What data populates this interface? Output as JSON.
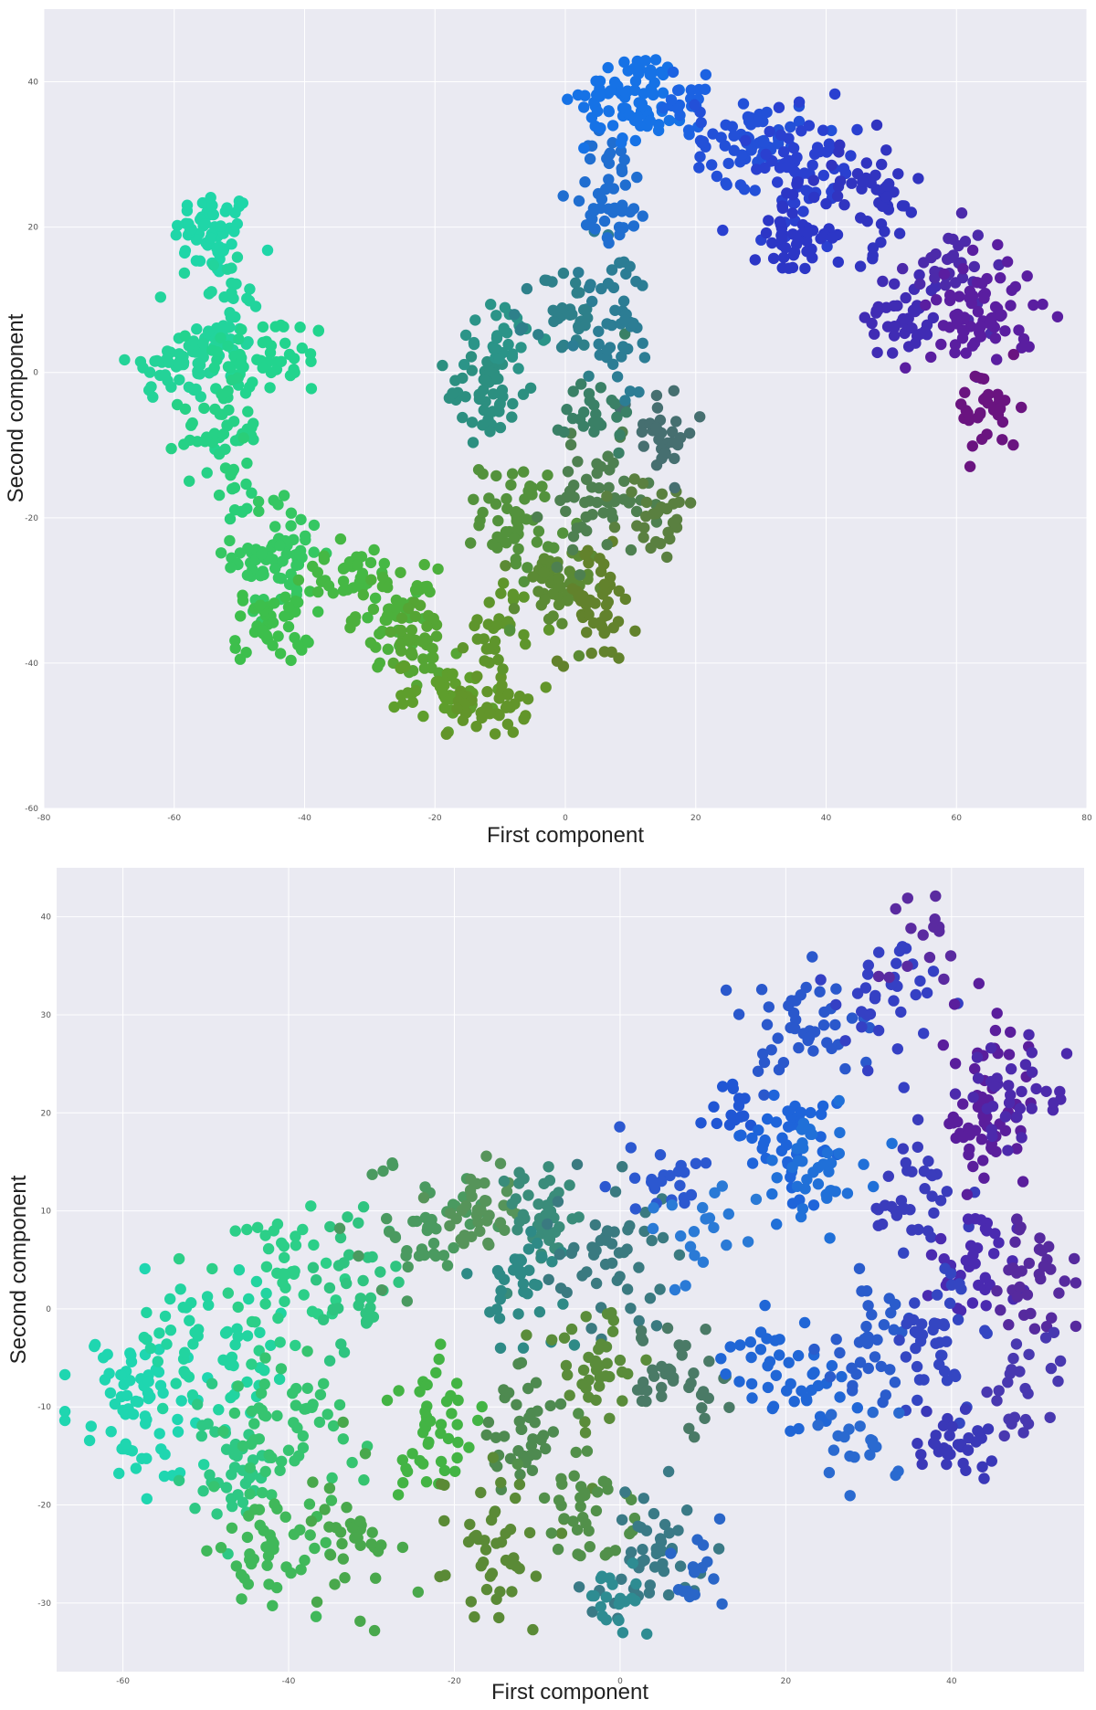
{
  "chart_data": [
    {
      "type": "scatter",
      "title": "",
      "xlabel": "First  component",
      "ylabel": "Second  component",
      "xlim": [
        -80,
        80
      ],
      "ylim": [
        -60,
        50
      ],
      "xticks": [
        -80,
        -60,
        -40,
        -20,
        0,
        20,
        40,
        60,
        80
      ],
      "yticks": [
        -60,
        -40,
        -20,
        0,
        20,
        40
      ],
      "grid": true,
      "background": "#eaeaf2",
      "clusters": [
        {
          "x": -54,
          "y": 19,
          "spread": [
            3,
            3
          ],
          "n": 55,
          "color": "#1fd6a8"
        },
        {
          "x": -52,
          "y": 8,
          "spread": [
            2.5,
            5
          ],
          "n": 45,
          "color": "#22d49c"
        },
        {
          "x": -59,
          "y": 1,
          "spread": [
            4,
            2.5
          ],
          "n": 50,
          "color": "#24d398"
        },
        {
          "x": -46,
          "y": 2,
          "spread": [
            5,
            3
          ],
          "n": 55,
          "color": "#22d48e"
        },
        {
          "x": -53,
          "y": -8,
          "spread": [
            3,
            3
          ],
          "n": 45,
          "color": "#26d186"
        },
        {
          "x": -51,
          "y": -16,
          "spread": [
            1.2,
            3
          ],
          "n": 15,
          "color": "#2ace78"
        },
        {
          "x": -44,
          "y": -25,
          "spread": [
            3.5,
            4
          ],
          "n": 70,
          "color": "#35c762"
        },
        {
          "x": -45,
          "y": -35,
          "spread": [
            3,
            2.5
          ],
          "n": 45,
          "color": "#3dbf4c"
        },
        {
          "x": -34,
          "y": -28,
          "spread": [
            4,
            2
          ],
          "n": 35,
          "color": "#45b844"
        },
        {
          "x": -26,
          "y": -33,
          "spread": [
            3,
            3
          ],
          "n": 45,
          "color": "#4cb03c"
        },
        {
          "x": -22,
          "y": -38,
          "spread": [
            3,
            3
          ],
          "n": 40,
          "color": "#55a534"
        },
        {
          "x": -18,
          "y": -44,
          "spread": [
            4,
            2
          ],
          "n": 40,
          "color": "#5e9e2c"
        },
        {
          "x": -12,
          "y": -46,
          "spread": [
            3,
            2
          ],
          "n": 40,
          "color": "#62952a"
        },
        {
          "x": -10,
          "y": -35,
          "spread": [
            2.5,
            3
          ],
          "n": 30,
          "color": "#5e952c"
        },
        {
          "x": -7,
          "y": -20,
          "spread": [
            3,
            4
          ],
          "n": 55,
          "color": "#53923c"
        },
        {
          "x": -2,
          "y": -30,
          "spread": [
            3,
            3
          ],
          "n": 45,
          "color": "#5b8a34"
        },
        {
          "x": 5,
          "y": -32,
          "spread": [
            3,
            4
          ],
          "n": 45,
          "color": "#62822c"
        },
        {
          "x": 5,
          "y": -18,
          "spread": [
            4,
            4
          ],
          "n": 55,
          "color": "#4e8050"
        },
        {
          "x": 14,
          "y": -20,
          "spread": [
            3,
            3
          ],
          "n": 30,
          "color": "#5a8040"
        },
        {
          "x": 14,
          "y": -8,
          "spread": [
            3,
            3
          ],
          "n": 30,
          "color": "#466f70"
        },
        {
          "x": 5,
          "y": -5,
          "spread": [
            2.5,
            3
          ],
          "n": 25,
          "color": "#3a8066"
        },
        {
          "x": -12,
          "y": -3,
          "spread": [
            3,
            3
          ],
          "n": 45,
          "color": "#2c8f80"
        },
        {
          "x": -10,
          "y": 5,
          "spread": [
            3,
            2.5
          ],
          "n": 30,
          "color": "#2b9488"
        },
        {
          "x": 0,
          "y": 7,
          "spread": [
            2.5,
            4
          ],
          "n": 35,
          "color": "#2e808a"
        },
        {
          "x": 8,
          "y": 7,
          "spread": [
            3,
            6
          ],
          "n": 45,
          "color": "#2c7d94"
        },
        {
          "x": 7,
          "y": 25,
          "spread": [
            3,
            4
          ],
          "n": 45,
          "color": "#206ed0"
        },
        {
          "x": 11,
          "y": 38,
          "spread": [
            4,
            3
          ],
          "n": 80,
          "color": "#1672e6"
        },
        {
          "x": 18,
          "y": 37,
          "spread": [
            2.5,
            2
          ],
          "n": 20,
          "color": "#1c62e2"
        },
        {
          "x": 28,
          "y": 32,
          "spread": [
            4,
            3
          ],
          "n": 65,
          "color": "#2350d8"
        },
        {
          "x": 37,
          "y": 28,
          "spread": [
            4,
            4
          ],
          "n": 65,
          "color": "#2a40d0"
        },
        {
          "x": 35,
          "y": 19,
          "spread": [
            3,
            3
          ],
          "n": 50,
          "color": "#2c36c6"
        },
        {
          "x": 47,
          "y": 24,
          "spread": [
            4,
            4
          ],
          "n": 45,
          "color": "#3134c0"
        },
        {
          "x": 52,
          "y": 8,
          "spread": [
            3,
            3
          ],
          "n": 45,
          "color": "#402cb4"
        },
        {
          "x": 59,
          "y": 14,
          "spread": [
            3,
            3
          ],
          "n": 30,
          "color": "#4c2aaa"
        },
        {
          "x": 64,
          "y": 8,
          "spread": [
            4,
            4
          ],
          "n": 70,
          "color": "#5a1ea0"
        },
        {
          "x": 65,
          "y": -5,
          "spread": [
            2.5,
            3
          ],
          "n": 35,
          "color": "#6a1480"
        }
      ]
    },
    {
      "type": "scatter",
      "title": "",
      "xlabel": "First  component",
      "ylabel": "Second  component",
      "xlim": [
        -68,
        56
      ],
      "ylim": [
        -37,
        45
      ],
      "xticks": [
        -60,
        -40,
        -20,
        0,
        20,
        40
      ],
      "yticks": [
        -30,
        -20,
        -10,
        0,
        10,
        20,
        30,
        40
      ],
      "grid": true,
      "background": "#eaeaf2",
      "clusters": [
        {
          "x": -58,
          "y": -10,
          "spread": [
            4,
            4
          ],
          "n": 70,
          "color": "#1fd6b0"
        },
        {
          "x": -50,
          "y": -4,
          "spread": [
            4,
            4
          ],
          "n": 60,
          "color": "#22d4a0"
        },
        {
          "x": -42,
          "y": 3,
          "spread": [
            3.5,
            3.5
          ],
          "n": 45,
          "color": "#2ccf88"
        },
        {
          "x": -47,
          "y": -17,
          "spread": [
            3,
            3
          ],
          "n": 40,
          "color": "#2ec884"
        },
        {
          "x": -40,
          "y": -12,
          "spread": [
            4,
            4
          ],
          "n": 55,
          "color": "#36c470"
        },
        {
          "x": -43,
          "y": -25,
          "spread": [
            4,
            3
          ],
          "n": 45,
          "color": "#40b85a"
        },
        {
          "x": -33,
          "y": -24,
          "spread": [
            3,
            4
          ],
          "n": 35,
          "color": "#49a84c"
        },
        {
          "x": -32,
          "y": 3,
          "spread": [
            3,
            4
          ],
          "n": 35,
          "color": "#2fc480"
        },
        {
          "x": -24,
          "y": 9,
          "spread": [
            4,
            3
          ],
          "n": 45,
          "color": "#4a9a60"
        },
        {
          "x": -17,
          "y": 10,
          "spread": [
            3,
            3
          ],
          "n": 35,
          "color": "#56945a"
        },
        {
          "x": -10,
          "y": 10,
          "spread": [
            3,
            3
          ],
          "n": 40,
          "color": "#3a8c7a"
        },
        {
          "x": -12,
          "y": 2,
          "spread": [
            3,
            3
          ],
          "n": 35,
          "color": "#2e8a86"
        },
        {
          "x": -2,
          "y": 5,
          "spread": [
            4,
            4
          ],
          "n": 50,
          "color": "#3a7a80"
        },
        {
          "x": -22,
          "y": -12,
          "spread": [
            3,
            4
          ],
          "n": 45,
          "color": "#43b444"
        },
        {
          "x": -12,
          "y": -13,
          "spread": [
            3,
            3
          ],
          "n": 40,
          "color": "#4e8a50"
        },
        {
          "x": -3,
          "y": -6,
          "spread": [
            3,
            4
          ],
          "n": 40,
          "color": "#5a8c3a"
        },
        {
          "x": 6,
          "y": -7,
          "spread": [
            3,
            3
          ],
          "n": 40,
          "color": "#4a7a66"
        },
        {
          "x": -15,
          "y": -24,
          "spread": [
            3,
            4
          ],
          "n": 45,
          "color": "#5a8a36"
        },
        {
          "x": -4,
          "y": -20,
          "spread": [
            3,
            3
          ],
          "n": 40,
          "color": "#52904a"
        },
        {
          "x": 4,
          "y": -25,
          "spread": [
            3,
            4
          ],
          "n": 45,
          "color": "#3a7a86"
        },
        {
          "x": 0,
          "y": -30,
          "spread": [
            2,
            2
          ],
          "n": 20,
          "color": "#2e8c92"
        },
        {
          "x": 9,
          "y": -27,
          "spread": [
            2,
            2
          ],
          "n": 15,
          "color": "#2a66c8"
        },
        {
          "x": 5,
          "y": 13,
          "spread": [
            3,
            2
          ],
          "n": 25,
          "color": "#2c58d0"
        },
        {
          "x": 10,
          "y": 8,
          "spread": [
            2.5,
            2.5
          ],
          "n": 20,
          "color": "#2a7ad6"
        },
        {
          "x": 14,
          "y": 20,
          "spread": [
            2,
            2
          ],
          "n": 15,
          "color": "#2056d4"
        },
        {
          "x": 20,
          "y": 17,
          "spread": [
            3,
            3
          ],
          "n": 40,
          "color": "#1e64da"
        },
        {
          "x": 24,
          "y": 14,
          "spread": [
            3,
            3
          ],
          "n": 40,
          "color": "#2070d8"
        },
        {
          "x": 23,
          "y": 29,
          "spread": [
            4,
            3
          ],
          "n": 45,
          "color": "#2a58cc"
        },
        {
          "x": 32,
          "y": 32,
          "spread": [
            3,
            3
          ],
          "n": 35,
          "color": "#3540c4"
        },
        {
          "x": 36,
          "y": 38,
          "spread": [
            2,
            2
          ],
          "n": 15,
          "color": "#5a2aa0"
        },
        {
          "x": 36,
          "y": 11,
          "spread": [
            3,
            3
          ],
          "n": 35,
          "color": "#3a3cbc"
        },
        {
          "x": 44,
          "y": 20,
          "spread": [
            3,
            4
          ],
          "n": 60,
          "color": "#5a1e9c"
        },
        {
          "x": 48,
          "y": 23,
          "spread": [
            3,
            3
          ],
          "n": 35,
          "color": "#4c2aac"
        },
        {
          "x": 43,
          "y": 5,
          "spread": [
            3,
            3
          ],
          "n": 40,
          "color": "#4a2ab0"
        },
        {
          "x": 50,
          "y": 3,
          "spread": [
            3,
            3
          ],
          "n": 35,
          "color": "#562a9e"
        },
        {
          "x": 21,
          "y": -7,
          "spread": [
            4,
            3
          ],
          "n": 45,
          "color": "#2066d6"
        },
        {
          "x": 30,
          "y": -4,
          "spread": [
            3,
            3
          ],
          "n": 35,
          "color": "#2a5ccc"
        },
        {
          "x": 38,
          "y": -3,
          "spread": [
            3,
            4
          ],
          "n": 45,
          "color": "#3446c2"
        },
        {
          "x": 29,
          "y": -14,
          "spread": [
            3,
            2
          ],
          "n": 20,
          "color": "#2a6ad0"
        },
        {
          "x": 40,
          "y": -14,
          "spread": [
            3,
            2
          ],
          "n": 35,
          "color": "#3a38b8"
        },
        {
          "x": 48,
          "y": -8,
          "spread": [
            3,
            3
          ],
          "n": 25,
          "color": "#4838b0"
        }
      ]
    }
  ]
}
